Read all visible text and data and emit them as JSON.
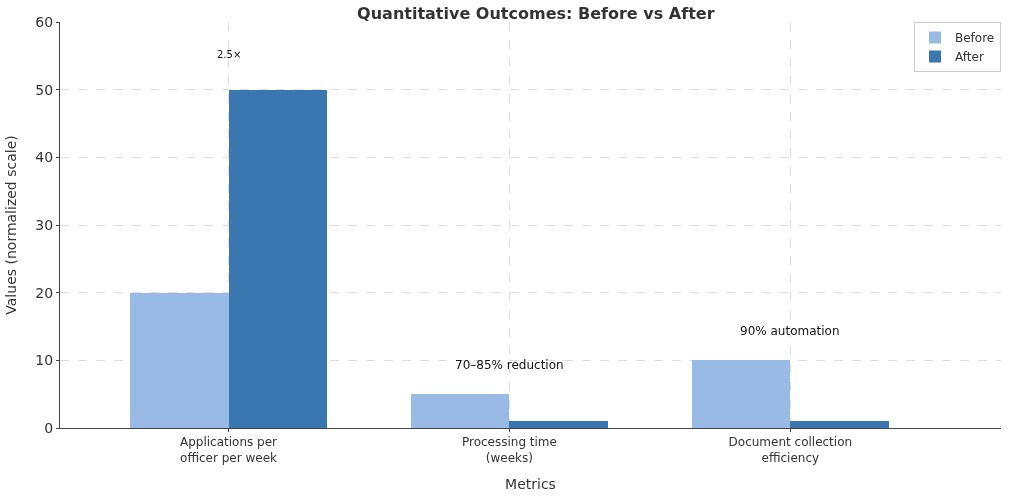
{
  "chart_data": {
    "type": "bar",
    "title": "Quantitative Outcomes: Before vs After",
    "xlabel": "Metrics",
    "ylabel": "Values (normalized scale)",
    "categories": [
      "Applications per\nofficer per week",
      "Processing time\n(weeks)",
      "Document collection\nefficiency"
    ],
    "series": [
      {
        "name": "Before",
        "color": "#98bae4",
        "values": [
          20,
          5,
          10
        ]
      },
      {
        "name": "After",
        "color": "#3a76b0",
        "values": [
          50,
          1,
          1
        ]
      }
    ],
    "ylim": [
      0,
      60
    ],
    "yticks": [
      0,
      10,
      20,
      30,
      40,
      50,
      60
    ],
    "grid": true,
    "legend": "top right",
    "annotations": [
      "2.5×",
      "70–85% reduction",
      "90% automation"
    ]
  }
}
